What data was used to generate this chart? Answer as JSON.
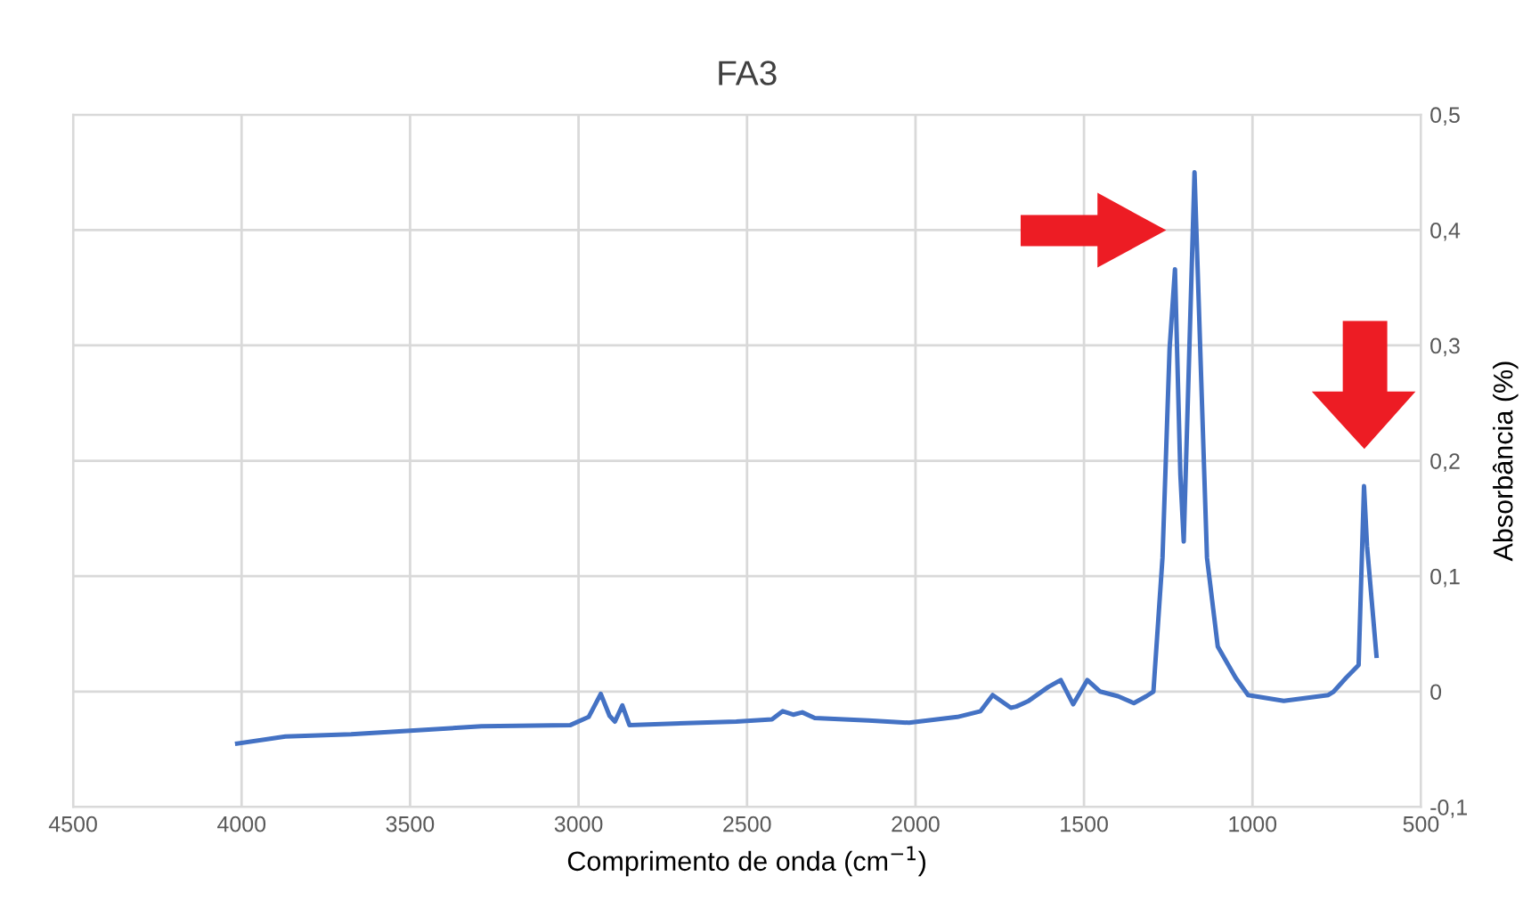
{
  "chart_data": {
    "type": "line",
    "title": "FA3",
    "xlabel": "Comprimento de onda (cm$^{−1}$)",
    "ylabel": "Absorbância (%)",
    "xlim": [
      4500,
      500
    ],
    "xticks": [
      4500,
      4000,
      3500,
      3000,
      2500,
      2000,
      1500,
      1000,
      500
    ],
    "ylim": [
      -0.1,
      0.5
    ],
    "yticks": [
      {
        "value": -0.1,
        "label": "-0,1"
      },
      {
        "value": 0,
        "label": "0"
      },
      {
        "value": 0.1,
        "label": "0,1"
      },
      {
        "value": 0.2,
        "label": "0,2"
      },
      {
        "value": 0.3,
        "label": "0,3"
      },
      {
        "value": 0.4,
        "label": "0,4"
      },
      {
        "value": 0.5,
        "label": "0,5"
      }
    ],
    "grid": true,
    "marker": "none",
    "line_style": "solid",
    "series": [
      {
        "color": "#4472c4",
        "x": [
          4013,
          3870,
          3675,
          3500,
          3288,
          3024,
          2970,
          2934,
          2908,
          2892,
          2870,
          2849,
          2532,
          2426,
          2394,
          2363,
          2336,
          2299,
          2140,
          2019,
          1876,
          1807,
          1771,
          1717,
          1701,
          1664,
          1606,
          1569,
          1532,
          1490,
          1452,
          1399,
          1352,
          1315,
          1294,
          1267,
          1246,
          1230,
          1214,
          1204,
          1188,
          1172,
          1135,
          1103,
          1050,
          1013,
          907,
          775,
          759,
          722,
          685,
          669,
          660,
          632
        ],
        "values": [
          -0.045,
          -0.039,
          -0.037,
          -0.034,
          -0.03,
          -0.029,
          -0.022,
          -0.002,
          -0.021,
          -0.026,
          -0.012,
          -0.029,
          -0.026,
          -0.024,
          -0.017,
          -0.02,
          -0.018,
          -0.023,
          -0.025,
          -0.027,
          -0.022,
          -0.017,
          -0.003,
          -0.014,
          -0.013,
          -0.008,
          0.004,
          0.01,
          -0.011,
          0.01,
          0.0,
          -0.004,
          -0.01,
          -0.004,
          0.0,
          0.116,
          0.297,
          0.366,
          0.188,
          0.13,
          0.29,
          0.45,
          0.116,
          0.039,
          0.012,
          -0.003,
          -0.008,
          -0.003,
          0.0,
          0.012,
          0.023,
          0.178,
          0.126,
          0.031
        ]
      }
    ]
  }
}
